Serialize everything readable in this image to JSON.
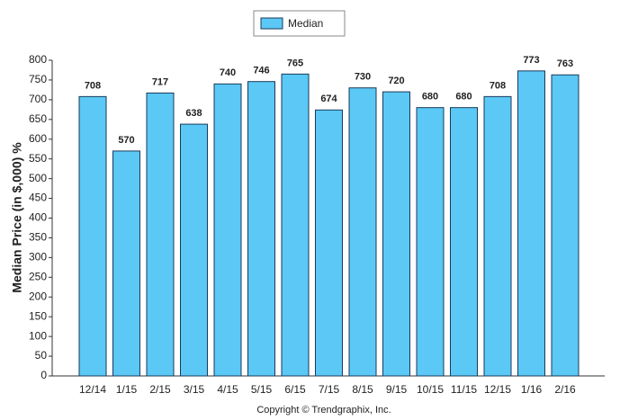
{
  "chart_data": {
    "type": "bar",
    "y_label": "Median Price (in $,000) %",
    "categories": [
      "12/14",
      "1/15",
      "2/15",
      "3/15",
      "4/15",
      "5/15",
      "6/15",
      "7/15",
      "8/15",
      "9/15",
      "10/15",
      "11/15",
      "12/15",
      "1/16",
      "2/16"
    ],
    "series": [
      {
        "name": "Median",
        "color": "#5bc8f5",
        "values": [
          708,
          570,
          717,
          638,
          740,
          746,
          765,
          674,
          730,
          720,
          680,
          680,
          708,
          773,
          763
        ]
      }
    ],
    "ylim": [
      0,
      800
    ],
    "yticks": [
      0,
      50,
      100,
      150,
      200,
      250,
      300,
      350,
      400,
      450,
      500,
      550,
      600,
      650,
      700,
      750,
      800
    ],
    "footer": "Copyright © Trendgraphix, Inc."
  }
}
